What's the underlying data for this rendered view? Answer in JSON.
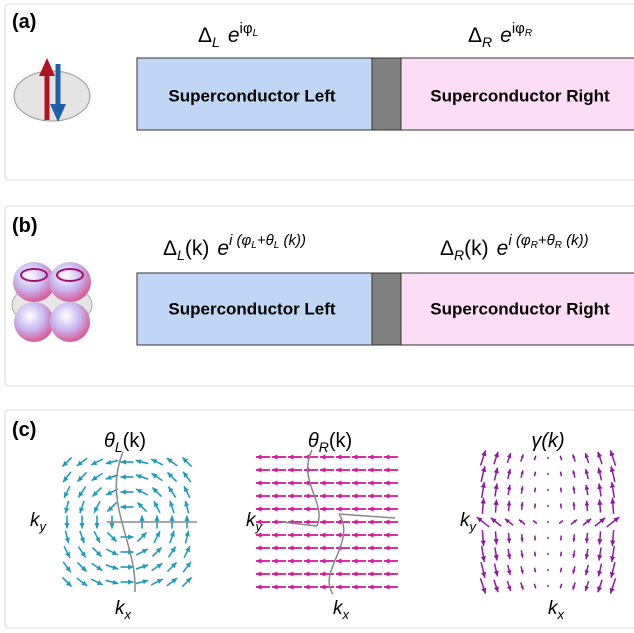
{
  "panel_a": {
    "label": "(a)",
    "left_formula": {
      "delta": "Δ",
      "delta_sub": "L",
      "exp": "e",
      "exp_sup": "iφ",
      "exp_sup_sub": "L"
    },
    "right_formula": {
      "delta": "Δ",
      "delta_sub": "R",
      "exp": "e",
      "exp_sup": "iφ",
      "exp_sup_sub": "R"
    },
    "left_box": "Superconductor Left",
    "right_box": "Superconductor Right"
  },
  "panel_b": {
    "label": "(b)",
    "left_formula": {
      "delta": "Δ",
      "delta_sub": "L",
      "k": "(k)",
      "exp": "e",
      "sup_1": "i (φ",
      "sup_1_sub": "L",
      "sup_2": "+θ",
      "sup_2_sub": "L",
      "sup_3": " (k))"
    },
    "right_formula": {
      "delta": "Δ",
      "delta_sub": "R",
      "k": "(k)",
      "exp": "e",
      "sup_1": "i (φ",
      "sup_1_sub": "R",
      "sup_2": "+θ",
      "sup_2_sub": "R",
      "sup_3": " (k))"
    },
    "left_box": "Superconductor Left",
    "right_box": "Superconductor Right"
  },
  "panel_c": {
    "label": "(c)",
    "plots": [
      {
        "title": "θ",
        "title_sub": "L",
        "title_k": "(k)",
        "ky": "k",
        "ky_sub": "y",
        "kx": "k",
        "kx_sub": "x"
      },
      {
        "title": "θ",
        "title_sub": "R",
        "title_k": "(k)",
        "ky": "k",
        "ky_sub": "y",
        "kx": "k",
        "kx_sub": "x"
      },
      {
        "title": "γ(k)",
        "ky": "k",
        "ky_sub": "y",
        "kx": "k",
        "kx_sub": "x"
      }
    ]
  }
}
